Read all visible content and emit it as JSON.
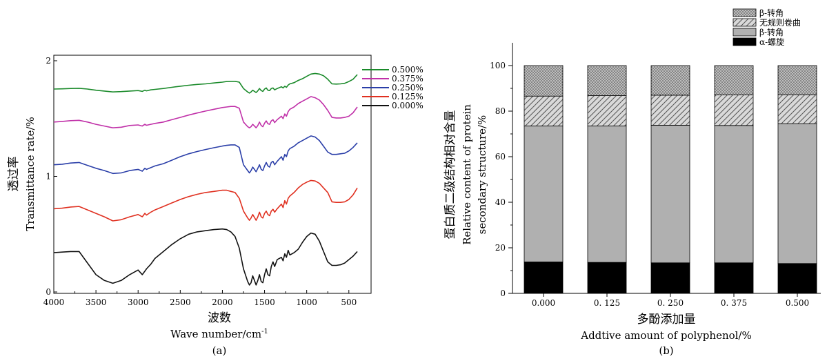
{
  "chart_data": [
    {
      "type": "line",
      "panel_label": "(a)",
      "xlabel_cn": "波数",
      "xlabel_en_main": "Wave number/cm",
      "xlabel_en_sup": "-1",
      "ylabel_cn": "透过率",
      "ylabel_en": "Transmittance rate/%",
      "xlim": [
        4000,
        400
      ],
      "ylim": [
        0,
        2
      ],
      "x_ticks": [
        4000,
        3500,
        3000,
        2500,
        2000,
        1500,
        1000,
        500
      ],
      "x_tick_labels": [
        "4000",
        "3500",
        "3000",
        "2500",
        "2000",
        "1500",
        "1000",
        "500"
      ],
      "y_ticks": [
        0,
        1,
        2
      ],
      "y_tick_labels": [
        "0",
        "1",
        "2"
      ],
      "grid": false,
      "legend_position": "top-right",
      "x": [
        4000,
        3900,
        3800,
        3700,
        3600,
        3500,
        3400,
        3300,
        3200,
        3100,
        3000,
        2950,
        2920,
        2900,
        2850,
        2800,
        2700,
        2600,
        2500,
        2400,
        2300,
        2200,
        2100,
        2000,
        1950,
        1900,
        1850,
        1800,
        1750,
        1700,
        1680,
        1660,
        1640,
        1620,
        1600,
        1580,
        1560,
        1540,
        1520,
        1500,
        1480,
        1460,
        1440,
        1420,
        1400,
        1380,
        1350,
        1300,
        1280,
        1260,
        1240,
        1220,
        1200,
        1150,
        1100,
        1050,
        1000,
        950,
        900,
        850,
        800,
        750,
        700,
        650,
        600,
        550,
        500,
        450,
        400
      ],
      "series": [
        {
          "name": "0.500%",
          "color": "#1a8a2a",
          "values": [
            1.755,
            1.757,
            1.76,
            1.762,
            1.755,
            1.745,
            1.738,
            1.73,
            1.733,
            1.738,
            1.742,
            1.735,
            1.745,
            1.74,
            1.748,
            1.752,
            1.76,
            1.77,
            1.78,
            1.788,
            1.795,
            1.8,
            1.808,
            1.815,
            1.82,
            1.822,
            1.822,
            1.815,
            1.76,
            1.73,
            1.72,
            1.73,
            1.745,
            1.735,
            1.725,
            1.74,
            1.76,
            1.742,
            1.735,
            1.755,
            1.765,
            1.745,
            1.742,
            1.76,
            1.765,
            1.748,
            1.76,
            1.775,
            1.765,
            1.78,
            1.77,
            1.79,
            1.8,
            1.81,
            1.83,
            1.845,
            1.865,
            1.885,
            1.89,
            1.885,
            1.87,
            1.84,
            1.8,
            1.798,
            1.8,
            1.805,
            1.82,
            1.84,
            1.88
          ]
        },
        {
          "name": "0.375%",
          "color": "#c030a8",
          "values": [
            1.47,
            1.475,
            1.482,
            1.485,
            1.47,
            1.45,
            1.435,
            1.42,
            1.425,
            1.44,
            1.445,
            1.435,
            1.45,
            1.442,
            1.45,
            1.458,
            1.47,
            1.49,
            1.51,
            1.53,
            1.548,
            1.565,
            1.58,
            1.595,
            1.6,
            1.605,
            1.605,
            1.59,
            1.47,
            1.43,
            1.42,
            1.43,
            1.45,
            1.435,
            1.42,
            1.44,
            1.47,
            1.44,
            1.43,
            1.46,
            1.48,
            1.455,
            1.45,
            1.48,
            1.49,
            1.465,
            1.49,
            1.52,
            1.5,
            1.54,
            1.52,
            1.56,
            1.58,
            1.6,
            1.63,
            1.65,
            1.67,
            1.69,
            1.68,
            1.66,
            1.62,
            1.57,
            1.51,
            1.505,
            1.505,
            1.51,
            1.52,
            1.55,
            1.6
          ]
        },
        {
          "name": "0.250%",
          "color": "#2a3ea8",
          "values": [
            1.1,
            1.105,
            1.115,
            1.12,
            1.095,
            1.07,
            1.05,
            1.025,
            1.03,
            1.05,
            1.06,
            1.045,
            1.07,
            1.06,
            1.075,
            1.09,
            1.11,
            1.14,
            1.17,
            1.195,
            1.215,
            1.232,
            1.248,
            1.262,
            1.268,
            1.272,
            1.272,
            1.25,
            1.1,
            1.05,
            1.03,
            1.05,
            1.08,
            1.06,
            1.04,
            1.07,
            1.1,
            1.06,
            1.05,
            1.09,
            1.12,
            1.09,
            1.08,
            1.12,
            1.13,
            1.1,
            1.13,
            1.17,
            1.14,
            1.19,
            1.17,
            1.22,
            1.24,
            1.26,
            1.29,
            1.31,
            1.33,
            1.35,
            1.34,
            1.31,
            1.26,
            1.21,
            1.19,
            1.19,
            1.195,
            1.2,
            1.22,
            1.25,
            1.29
          ]
        },
        {
          "name": "0.125%",
          "color": "#e03020",
          "values": [
            0.72,
            0.725,
            0.735,
            0.74,
            0.71,
            0.68,
            0.65,
            0.615,
            0.625,
            0.65,
            0.67,
            0.65,
            0.68,
            0.665,
            0.69,
            0.71,
            0.74,
            0.77,
            0.8,
            0.825,
            0.845,
            0.86,
            0.87,
            0.88,
            0.88,
            0.87,
            0.86,
            0.81,
            0.7,
            0.64,
            0.62,
            0.64,
            0.67,
            0.645,
            0.62,
            0.65,
            0.69,
            0.65,
            0.64,
            0.68,
            0.7,
            0.67,
            0.66,
            0.7,
            0.715,
            0.69,
            0.72,
            0.76,
            0.73,
            0.79,
            0.76,
            0.81,
            0.83,
            0.86,
            0.9,
            0.93,
            0.95,
            0.965,
            0.96,
            0.94,
            0.9,
            0.86,
            0.78,
            0.775,
            0.775,
            0.78,
            0.8,
            0.84,
            0.9
          ]
        },
        {
          "name": "0.000%",
          "color": "#111111",
          "values": [
            0.34,
            0.345,
            0.35,
            0.35,
            0.25,
            0.15,
            0.1,
            0.075,
            0.1,
            0.15,
            0.19,
            0.15,
            0.18,
            0.2,
            0.24,
            0.29,
            0.35,
            0.41,
            0.46,
            0.5,
            0.52,
            0.53,
            0.54,
            0.545,
            0.54,
            0.52,
            0.48,
            0.38,
            0.2,
            0.09,
            0.06,
            0.08,
            0.14,
            0.1,
            0.06,
            0.1,
            0.15,
            0.09,
            0.08,
            0.15,
            0.2,
            0.15,
            0.14,
            0.22,
            0.26,
            0.22,
            0.28,
            0.3,
            0.27,
            0.33,
            0.3,
            0.36,
            0.32,
            0.34,
            0.37,
            0.43,
            0.48,
            0.51,
            0.5,
            0.44,
            0.35,
            0.26,
            0.23,
            0.23,
            0.235,
            0.25,
            0.28,
            0.31,
            0.35
          ]
        }
      ]
    },
    {
      "type": "bar",
      "stacked": true,
      "panel_label": "(b)",
      "xlabel_cn": "多酚添加量",
      "xlabel_en": "Addtive amount of polyphenol/%",
      "ylabel_cn": "蛋白质二级结构相对含量",
      "ylabel_en_1": "Relative content of protein",
      "ylabel_en_2": "secondary structure/%",
      "categories": [
        "0.000",
        "0. 125",
        "0. 250",
        "0. 375",
        "0.500"
      ],
      "ylim": [
        0,
        110
      ],
      "y_ticks": [
        0,
        20,
        40,
        60,
        80,
        100
      ],
      "y_tick_labels": [
        "0",
        "20",
        "40",
        "60",
        "80",
        "100"
      ],
      "grid": false,
      "legend_position": "top-right",
      "series": [
        {
          "name": "α-螺旋",
          "fill": "black",
          "values": [
            13.8,
            13.6,
            13.4,
            13.4,
            13.1
          ]
        },
        {
          "name": "β-转角",
          "fill": "gray",
          "values": [
            59.7,
            59.9,
            60.4,
            60.3,
            61.4
          ]
        },
        {
          "name": "无规则卷曲",
          "fill": "hatch",
          "values": [
            13.1,
            13.3,
            13.2,
            13.4,
            12.7
          ]
        },
        {
          "name": "β-转角",
          "fill": "dots",
          "values": [
            13.4,
            13.2,
            13.0,
            12.9,
            12.8
          ]
        }
      ]
    }
  ]
}
